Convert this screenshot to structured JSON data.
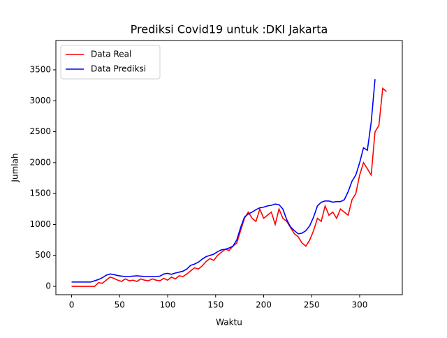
{
  "chart_data": {
    "type": "line",
    "title": "Prediksi Covid19 untuk :DKI Jakarta",
    "x_label": "Waktu",
    "y_label": "Jumlah",
    "x": [
      0,
      4,
      8,
      12,
      16,
      20,
      24,
      28,
      32,
      36,
      40,
      44,
      48,
      52,
      56,
      60,
      64,
      68,
      72,
      76,
      80,
      84,
      88,
      92,
      96,
      100,
      104,
      108,
      112,
      116,
      120,
      124,
      128,
      132,
      136,
      140,
      144,
      148,
      152,
      156,
      160,
      164,
      168,
      172,
      176,
      180,
      184,
      188,
      192,
      196,
      200,
      204,
      208,
      212,
      216,
      220,
      224,
      228,
      232,
      236,
      240,
      244,
      248,
      252,
      256,
      260,
      264,
      268,
      272,
      276,
      280,
      284,
      288,
      292,
      296,
      300,
      304,
      308,
      312,
      316,
      320,
      324,
      328
    ],
    "series": [
      {
        "name": "Data Real",
        "color": "#ff0000",
        "values": [
          0,
          0,
          0,
          0,
          0,
          0,
          0,
          60,
          50,
          100,
          150,
          130,
          100,
          80,
          120,
          90,
          100,
          80,
          120,
          100,
          90,
          120,
          100,
          90,
          130,
          100,
          150,
          120,
          170,
          160,
          200,
          250,
          300,
          280,
          330,
          400,
          450,
          420,
          500,
          550,
          600,
          580,
          650,
          700,
          900,
          1100,
          1200,
          1100,
          1050,
          1250,
          1100,
          1150,
          1200,
          1000,
          1250,
          1100,
          1050,
          950,
          850,
          800,
          700,
          650,
          750,
          900,
          1100,
          1050,
          1300,
          1150,
          1200,
          1100,
          1250,
          1200,
          1150,
          1400,
          1500,
          1800,
          2000,
          1900,
          1800,
          2500,
          2600,
          3200,
          3150
        ]
      },
      {
        "name": "Data Prediksi",
        "color": "#0000ff",
        "values": [
          70,
          70,
          70,
          70,
          70,
          70,
          90,
          110,
          140,
          180,
          200,
          190,
          175,
          165,
          160,
          160,
          165,
          170,
          165,
          160,
          160,
          160,
          160,
          165,
          200,
          210,
          195,
          215,
          230,
          245,
          280,
          340,
          360,
          390,
          440,
          480,
          500,
          520,
          560,
          590,
          600,
          620,
          650,
          750,
          950,
          1120,
          1170,
          1200,
          1240,
          1270,
          1280,
          1300,
          1310,
          1330,
          1320,
          1250,
          1080,
          960,
          900,
          850,
          860,
          900,
          980,
          1120,
          1300,
          1360,
          1380,
          1380,
          1360,
          1370,
          1370,
          1400,
          1530,
          1700,
          1800,
          2000,
          2240,
          2200,
          2650,
          3350,
          null,
          null,
          null
        ]
      }
    ],
    "xlim": [
      -16.4,
      344.4
    ],
    "ylim": [
      -135,
      3974
    ],
    "xticks": [
      0,
      50,
      100,
      150,
      200,
      250,
      300
    ],
    "yticks": [
      0,
      500,
      1000,
      1500,
      2000,
      2500,
      3000,
      3500
    ],
    "legend": "upper left"
  }
}
